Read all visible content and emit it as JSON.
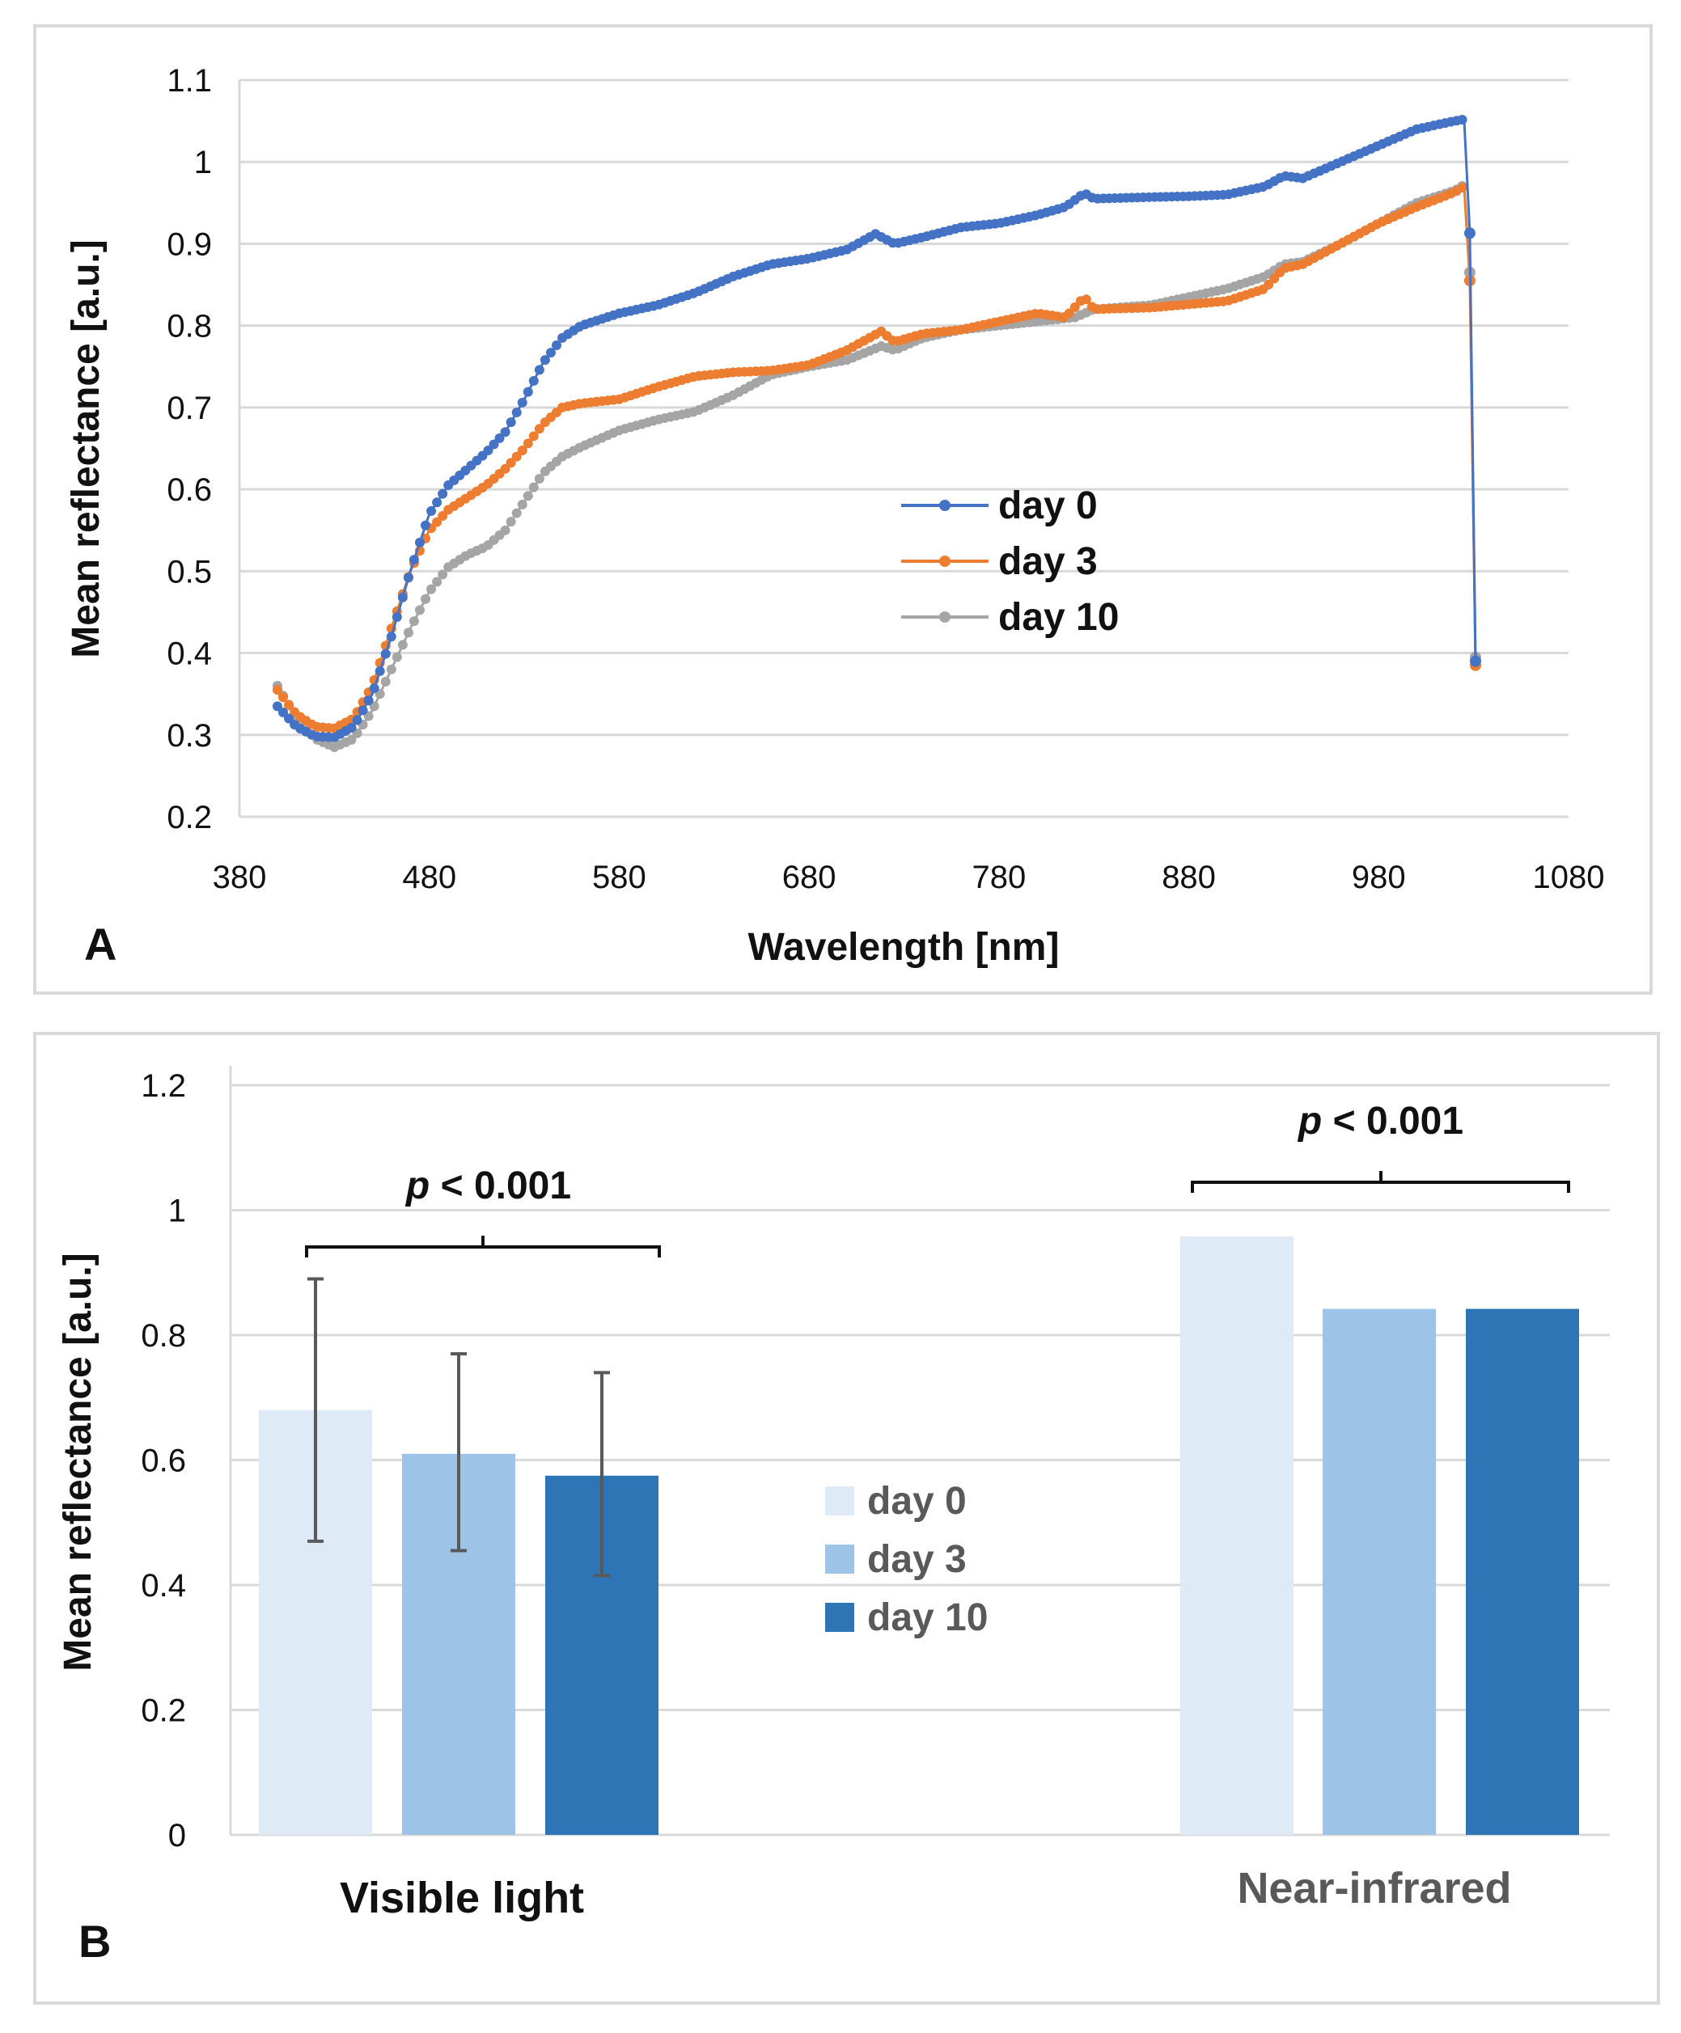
{
  "chart_data": [
    {
      "type": "line",
      "panel_label": "A",
      "xlabel": "Wavelength [nm]",
      "ylabel": "Mean reflectance [a.u.]",
      "xlim": [
        380,
        1080
      ],
      "ylim": [
        0.2,
        1.1
      ],
      "xticks": [
        "380",
        "480",
        "580",
        "680",
        "780",
        "880",
        "980",
        "1080"
      ],
      "yticks": [
        "0.2",
        "0.3",
        "0.4",
        "0.5",
        "0.6",
        "0.7",
        "0.8",
        "0.9",
        "1",
        "1.1"
      ],
      "grid": true,
      "legend_position": "center-right",
      "series": [
        {
          "name": "day 0",
          "color": "#4472C4",
          "points": [
            [
              400,
              0.335
            ],
            [
              410,
              0.31
            ],
            [
              420,
              0.298
            ],
            [
              430,
              0.297
            ],
            [
              440,
              0.31
            ],
            [
              450,
              0.35
            ],
            [
              460,
              0.42
            ],
            [
              470,
              0.5
            ],
            [
              480,
              0.57
            ],
            [
              490,
              0.605
            ],
            [
              500,
              0.625
            ],
            [
              510,
              0.645
            ],
            [
              520,
              0.67
            ],
            [
              530,
              0.71
            ],
            [
              540,
              0.755
            ],
            [
              550,
              0.785
            ],
            [
              560,
              0.8
            ],
            [
              580,
              0.815
            ],
            [
              600,
              0.825
            ],
            [
              620,
              0.84
            ],
            [
              640,
              0.86
            ],
            [
              660,
              0.875
            ],
            [
              680,
              0.882
            ],
            [
              700,
              0.893
            ],
            [
              715,
              0.912
            ],
            [
              725,
              0.9
            ],
            [
              740,
              0.908
            ],
            [
              760,
              0.92
            ],
            [
              780,
              0.925
            ],
            [
              790,
              0.93
            ],
            [
              800,
              0.935
            ],
            [
              815,
              0.945
            ],
            [
              825,
              0.962
            ],
            [
              830,
              0.955
            ],
            [
              860,
              0.957
            ],
            [
              880,
              0.958
            ],
            [
              900,
              0.96
            ],
            [
              920,
              0.97
            ],
            [
              930,
              0.983
            ],
            [
              940,
              0.98
            ],
            [
              960,
              1.0
            ],
            [
              980,
              1.02
            ],
            [
              1000,
              1.04
            ],
            [
              1020,
              1.05
            ],
            [
              1025,
              1.052
            ],
            [
              1028,
              0.913
            ],
            [
              1031,
              0.39
            ]
          ]
        },
        {
          "name": "day 3",
          "color": "#ED7D31",
          "points": [
            [
              400,
              0.355
            ],
            [
              410,
              0.325
            ],
            [
              420,
              0.31
            ],
            [
              430,
              0.308
            ],
            [
              440,
              0.32
            ],
            [
              450,
              0.36
            ],
            [
              460,
              0.43
            ],
            [
              470,
              0.5
            ],
            [
              480,
              0.55
            ],
            [
              490,
              0.575
            ],
            [
              500,
              0.59
            ],
            [
              510,
              0.605
            ],
            [
              520,
              0.625
            ],
            [
              530,
              0.65
            ],
            [
              540,
              0.68
            ],
            [
              550,
              0.7
            ],
            [
              560,
              0.705
            ],
            [
              580,
              0.71
            ],
            [
              600,
              0.725
            ],
            [
              620,
              0.738
            ],
            [
              640,
              0.743
            ],
            [
              660,
              0.745
            ],
            [
              680,
              0.752
            ],
            [
              700,
              0.77
            ],
            [
              718,
              0.793
            ],
            [
              725,
              0.78
            ],
            [
              740,
              0.79
            ],
            [
              760,
              0.795
            ],
            [
              780,
              0.805
            ],
            [
              800,
              0.815
            ],
            [
              815,
              0.81
            ],
            [
              825,
              0.835
            ],
            [
              830,
              0.82
            ],
            [
              860,
              0.822
            ],
            [
              880,
              0.826
            ],
            [
              900,
              0.83
            ],
            [
              920,
              0.845
            ],
            [
              930,
              0.87
            ],
            [
              940,
              0.875
            ],
            [
              960,
              0.9
            ],
            [
              980,
              0.925
            ],
            [
              1000,
              0.945
            ],
            [
              1020,
              0.963
            ],
            [
              1025,
              0.97
            ],
            [
              1028,
              0.855
            ],
            [
              1031,
              0.385
            ]
          ]
        },
        {
          "name": "day 10",
          "color": "#A5A5A5",
          "points": [
            [
              400,
              0.36
            ],
            [
              410,
              0.32
            ],
            [
              420,
              0.295
            ],
            [
              430,
              0.285
            ],
            [
              440,
              0.295
            ],
            [
              450,
              0.33
            ],
            [
              460,
              0.38
            ],
            [
              470,
              0.43
            ],
            [
              480,
              0.475
            ],
            [
              490,
              0.505
            ],
            [
              500,
              0.52
            ],
            [
              510,
              0.53
            ],
            [
              520,
              0.55
            ],
            [
              530,
              0.585
            ],
            [
              540,
              0.62
            ],
            [
              550,
              0.64
            ],
            [
              560,
              0.652
            ],
            [
              580,
              0.672
            ],
            [
              600,
              0.685
            ],
            [
              620,
              0.695
            ],
            [
              640,
              0.715
            ],
            [
              660,
              0.74
            ],
            [
              680,
              0.75
            ],
            [
              700,
              0.758
            ],
            [
              718,
              0.775
            ],
            [
              725,
              0.77
            ],
            [
              740,
              0.785
            ],
            [
              760,
              0.795
            ],
            [
              780,
              0.8
            ],
            [
              800,
              0.805
            ],
            [
              820,
              0.81
            ],
            [
              830,
              0.82
            ],
            [
              860,
              0.825
            ],
            [
              880,
              0.835
            ],
            [
              900,
              0.845
            ],
            [
              920,
              0.86
            ],
            [
              930,
              0.875
            ],
            [
              940,
              0.878
            ],
            [
              960,
              0.9
            ],
            [
              980,
              0.925
            ],
            [
              1000,
              0.95
            ],
            [
              1020,
              0.965
            ],
            [
              1025,
              0.972
            ],
            [
              1028,
              0.865
            ],
            [
              1031,
              0.395
            ]
          ]
        }
      ]
    },
    {
      "type": "bar",
      "panel_label": "B",
      "ylabel": "Mean reflectance [a.u.]",
      "ylim": [
        0,
        1.2
      ],
      "yticks": [
        "0",
        "0.2",
        "0.4",
        "0.6",
        "0.8",
        "1",
        "1.2"
      ],
      "grid": true,
      "legend_position": "center",
      "categories": [
        "Visible light",
        "Near-infrared"
      ],
      "series": [
        {
          "name": "day 0",
          "color": "#DEEAF6",
          "values": [
            0.68,
            0.958
          ],
          "error_low": [
            0.47,
            null
          ],
          "error_high": [
            0.89,
            null
          ]
        },
        {
          "name": "day 3",
          "color": "#9DC3E6",
          "values": [
            0.61,
            0.842
          ],
          "error_low": [
            0.455,
            null
          ],
          "error_high": [
            0.77,
            null
          ]
        },
        {
          "name": "day 10",
          "color": "#2E75B6",
          "values": [
            0.575,
            0.842
          ],
          "error_low": [
            0.415,
            null
          ],
          "error_high": [
            0.74,
            null
          ]
        }
      ],
      "annotations": [
        {
          "p_symbol": "p",
          "text": " < 0.001",
          "category": "Visible light"
        },
        {
          "p_symbol": "p",
          "text": " < 0.001",
          "category": "Near-infrared"
        }
      ]
    }
  ]
}
